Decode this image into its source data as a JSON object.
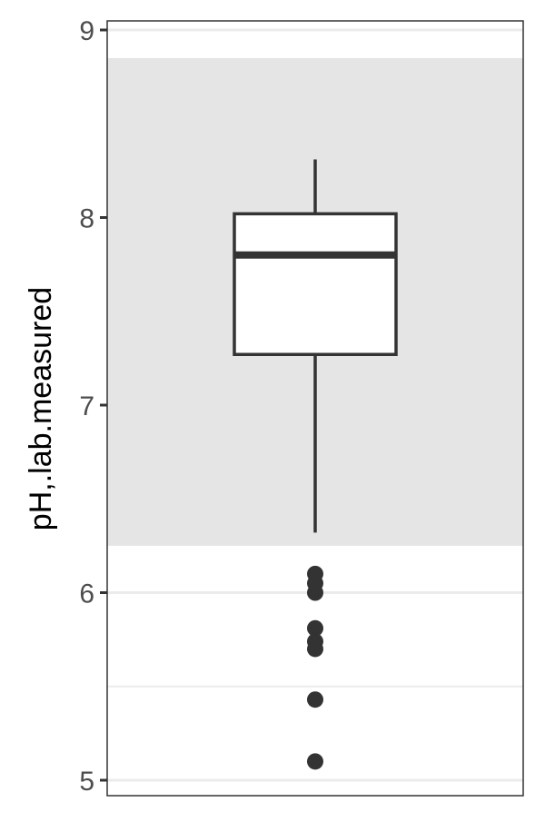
{
  "chart_data": {
    "type": "boxplot",
    "title": "",
    "xlabel": "",
    "ylabel": "pH,.lab.measured",
    "ylim": [
      5,
      9
    ],
    "y_ticks": [
      5,
      6,
      7,
      8,
      9
    ],
    "y_tick_labels": [
      "5",
      "6",
      "7",
      "8",
      "9"
    ],
    "minor_grid_y": [
      5.5,
      6.5,
      7.5,
      8.5
    ],
    "reference_band": [
      6.25,
      8.85
    ],
    "grid": true,
    "box": {
      "lower_whisker": 6.32,
      "q1": 7.27,
      "median": 7.8,
      "q3": 8.02,
      "upper_whisker": 8.31
    },
    "outliers": [
      6.1,
      6.05,
      6.0,
      5.81,
      5.74,
      5.7,
      5.43,
      5.1
    ]
  },
  "colors": {
    "band": "#e5e5e5",
    "grid": "#ebebeb",
    "box_stroke": "#333333",
    "box_fill": "#ffffff",
    "outlier": "#333333",
    "axis_text": "#4d4d4d",
    "axis_title": "#000000",
    "panel_border": "#333333"
  }
}
